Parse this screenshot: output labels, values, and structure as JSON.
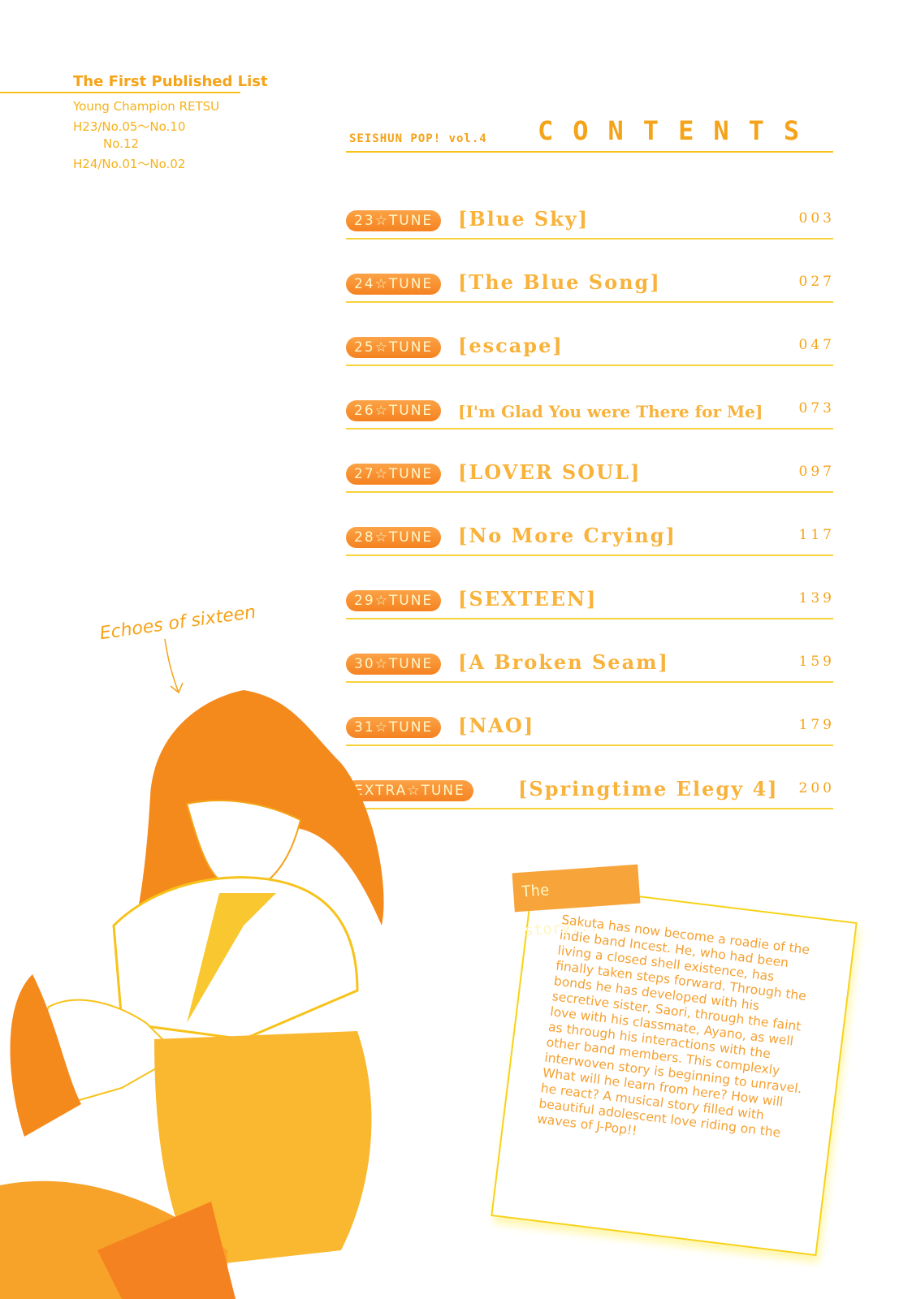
{
  "publication": {
    "title": "The First Published List",
    "lines": [
      "Young Champion RETSU",
      "H23/No.05〜No.10",
      "No.12",
      "H24/No.01〜No.02"
    ]
  },
  "header": {
    "series": "SEISHUN POP! vol.4",
    "contents": "CONTENTS"
  },
  "toc": [
    {
      "badge": "23☆TUNE",
      "title": "[Blue Sky]",
      "page": "003"
    },
    {
      "badge": "24☆TUNE",
      "title": "[The Blue Song]",
      "page": "027"
    },
    {
      "badge": "25☆TUNE",
      "title": "[escape]",
      "page": "047"
    },
    {
      "badge": "26☆TUNE",
      "title": "[I'm Glad You were There for Me]",
      "page": "073"
    },
    {
      "badge": "27☆TUNE",
      "title": "[LOVER SOUL]",
      "page": "097"
    },
    {
      "badge": "28☆TUNE",
      "title": "[No More Crying]",
      "page": "117"
    },
    {
      "badge": "29☆TUNE",
      "title": "[SEXTEEN]",
      "page": "139"
    },
    {
      "badge": "30☆TUNE",
      "title": "[A Broken Seam]",
      "page": "159"
    },
    {
      "badge": "31☆TUNE",
      "title": "[NAO]",
      "page": "179"
    },
    {
      "badge": "EXTRA☆TUNE",
      "title": "[Springtime Elegy 4]",
      "page": "200"
    }
  ],
  "illustration": {
    "caption": "Echoes of sixteen"
  },
  "story": {
    "tag": "The story....",
    "text": "Sakuta has now become a roadie of the indie band Incest. He, who had been living a closed shell existence, has finally taken steps forward. Through the bonds he has developed with his secretive sister, Saori, through the faint love with his classmate, Ayano, as well as through his interactions with the other band members. This complexly interwoven story is beginning to unravel. What will he learn from here? How will he react? A musical story filled with beautiful adolescent love riding on the waves of J-Pop!!"
  },
  "colors": {
    "accent": "#f58220",
    "text": "#f5a318",
    "rule": "#f7c21a"
  }
}
